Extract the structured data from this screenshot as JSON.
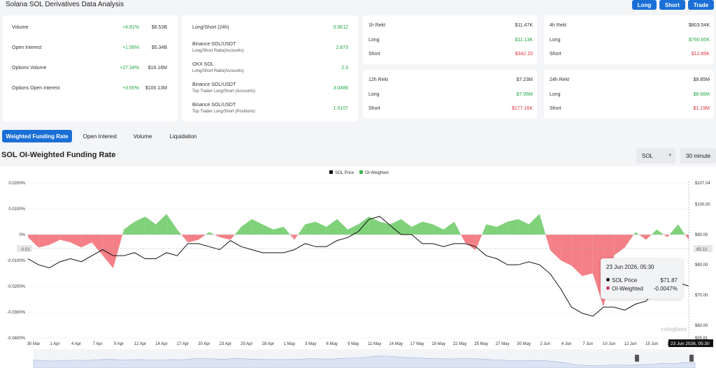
{
  "header": {
    "title": "Solana SOL Derivatives Data Analysis",
    "buttons": {
      "long": "Long",
      "short": "Short",
      "trade": "Trade"
    }
  },
  "card1": {
    "rows": [
      {
        "label": "Volume",
        "change": "+4.81%",
        "value": "$8.53B"
      },
      {
        "label": "Open Interest",
        "change": "+1.56%",
        "value": "$5.34B"
      },
      {
        "label": "Options Volume",
        "change": "+27.34%",
        "value": "$16.18M"
      },
      {
        "label": "Options Open Interest",
        "change": "+3.65%",
        "value": "$100.13M"
      }
    ]
  },
  "card2": {
    "rows": [
      {
        "label": "Long/Short (24h)",
        "sub": "",
        "value": "0.9612"
      },
      {
        "label": "Binance SOL/USDT",
        "sub": "Long/Short Ratio(Accounts)",
        "value": "2.873"
      },
      {
        "label": "OKX SOL",
        "sub": "Long/Short Ratio(Accounts)",
        "value": "2.3"
      },
      {
        "label": "Binance SOL/USDT",
        "sub": "Top Trader Long/Short (Accounts)",
        "value": "3.0486"
      },
      {
        "label": "Binance SOL/USDT",
        "sub": "Top Trader Long/Short (Positions)",
        "value": "1.5107"
      }
    ]
  },
  "rekt": {
    "r1h": {
      "title": "1h Rekt",
      "total": "$11.47K",
      "long_label": "Long",
      "long": "$11.13K",
      "short_label": "Short",
      "short": "$342.15"
    },
    "r4h": {
      "title": "4h Rekt",
      "total": "$803.54K",
      "long_label": "Long",
      "long": "$790.65K",
      "short_label": "Short",
      "short": "$12.89K"
    },
    "r12h": {
      "title": "12h Rekt",
      "total": "$7.23M",
      "long_label": "Long",
      "long": "$7.06M",
      "short_label": "Short",
      "short": "$177.16K"
    },
    "r24h": {
      "title": "24h Rekt",
      "total": "$9.85M",
      "long_label": "Long",
      "long": "$8.66M",
      "short_label": "Short",
      "short": "$1.19M"
    }
  },
  "tabs": [
    "Weighted Funding Rate",
    "Open Interest",
    "Volume",
    "Liquidation"
  ],
  "chart_title": "SOL OI-Weighted Funding Rate",
  "selects": {
    "coin": "SOL",
    "interval": "30 minute"
  },
  "tooltip": {
    "date": "23 Jun 2026, 05:30",
    "price_label": "SOL Price",
    "price": "$71.87",
    "oi_label": "OI-Weighted",
    "oi": "-0.0047%"
  },
  "crosshair": {
    "y_label": "-0.01",
    "right_label": "85.13",
    "x_label": "23 Jun 2026, 05:30"
  },
  "watermark": "coinglass",
  "colors": {
    "accent": "#1a6fd6",
    "positive": "#22a845",
    "negative": "#e0323e",
    "pos_area": "#7fd17a",
    "neg_area": "#f47f86"
  },
  "chart_data": {
    "type": "area",
    "legend": [
      "SOL Price",
      "OI-Weighted"
    ],
    "legend_position": "top-center",
    "left_ticks": [
      "0.0200%",
      "0.0100%",
      "0%",
      "-0.0100%",
      "-0.0200%",
      "-0.0300%",
      "-0.0400%"
    ],
    "right_ticks": [
      "$107.04",
      "$100.00",
      "$90.00",
      "$80.00",
      "$70.00",
      "$60.00",
      "$55.81"
    ],
    "x_ticks": [
      "30 Mar",
      "1 Apr",
      "4 Apr",
      "7 Apr",
      "9 Apr",
      "12 Apr",
      "14 Apr",
      "17 Apr",
      "20 Apr",
      "23 Apr",
      "25 Apr",
      "28 Apr",
      "1 May",
      "3 May",
      "6 May",
      "9 May",
      "11 May",
      "14 May",
      "17 May",
      "19 May",
      "22 May",
      "25 May",
      "27 May",
      "30 May",
      "2 Jun",
      "4 Jun",
      "7 Jun",
      "10 Jun",
      "12 Jun",
      "15 Jun",
      "18 Jun",
      "21 Jun"
    ],
    "funding_ylim": [
      -0.04,
      0.02
    ],
    "price_ylim": [
      55.81,
      107.04
    ],
    "x_index_range": [
      0,
      31
    ],
    "series": [
      {
        "name": "OI-Weighted",
        "x": [
          0,
          0.5,
          1,
          1.5,
          2,
          2.5,
          3,
          3.5,
          4,
          4.5,
          5,
          5.5,
          6,
          6.5,
          7,
          7.5,
          8,
          8.5,
          9,
          9.5,
          10,
          10.5,
          11,
          11.5,
          12,
          12.5,
          13,
          13.5,
          14,
          14.5,
          15,
          15.5,
          16,
          16.5,
          17,
          17.5,
          18,
          18.5,
          19,
          19.5,
          20,
          20.5,
          21,
          21.5,
          22,
          22.5,
          23,
          23.5,
          24,
          24.5,
          25,
          25.5,
          26,
          26.5,
          27,
          27.5,
          28,
          28.5,
          29,
          29.5,
          30,
          30.5,
          31
        ],
        "values": [
          -0.001,
          -0.005,
          -0.004,
          -0.002,
          -0.003,
          -0.005,
          -0.003,
          -0.008,
          -0.013,
          0.002,
          0.005,
          0.007,
          0.004,
          0.008,
          0.002,
          -0.003,
          -0.002,
          0.001,
          -0.001,
          -0.002,
          0.003,
          0.006,
          0.004,
          0.002,
          0.003,
          -0.002,
          0.004,
          0.005,
          0.003,
          0.006,
          0.002,
          0.004,
          0.007,
          0.005,
          0.004,
          0.006,
          0.003,
          0.005,
          0.004,
          0.002,
          0.005,
          -0.003,
          -0.006,
          0.004,
          0.003,
          0.005,
          0.006,
          0.004,
          0.008,
          -0.006,
          -0.01,
          -0.012,
          -0.016,
          -0.015,
          -0.028,
          -0.008,
          -0.005,
          0.001,
          -0.002,
          0.002,
          -0.001,
          0.004,
          -0.002
        ]
      },
      {
        "name": "SOL Price",
        "x": [
          0,
          0.5,
          1,
          1.5,
          2,
          2.5,
          3,
          3.5,
          4,
          4.5,
          5,
          5.5,
          6,
          6.5,
          7,
          7.5,
          8,
          8.5,
          9,
          9.5,
          10,
          10.5,
          11,
          11.5,
          12,
          12.5,
          13,
          13.5,
          14,
          14.5,
          15,
          15.5,
          16,
          16.5,
          17,
          17.5,
          18,
          18.5,
          19,
          19.5,
          20,
          20.5,
          21,
          21.5,
          22,
          22.5,
          23,
          23.5,
          24,
          24.5,
          25,
          25.5,
          26,
          26.5,
          27,
          27.5,
          28,
          28.5,
          29,
          29.5,
          30,
          30.5,
          31
        ],
        "values": [
          82,
          80,
          79,
          81,
          82,
          81,
          83,
          85,
          83,
          83,
          84,
          82,
          82,
          84,
          83,
          87,
          87,
          86,
          85,
          88,
          86,
          85,
          84,
          84,
          84,
          85,
          87,
          86,
          86,
          88,
          89,
          91,
          95,
          96,
          93,
          90,
          90,
          87,
          87,
          86,
          87,
          87,
          86,
          83,
          82,
          80,
          80,
          81,
          80,
          77,
          72,
          66,
          64,
          63,
          66,
          66,
          65,
          67,
          68,
          72,
          70,
          74,
          73
        ]
      }
    ]
  }
}
